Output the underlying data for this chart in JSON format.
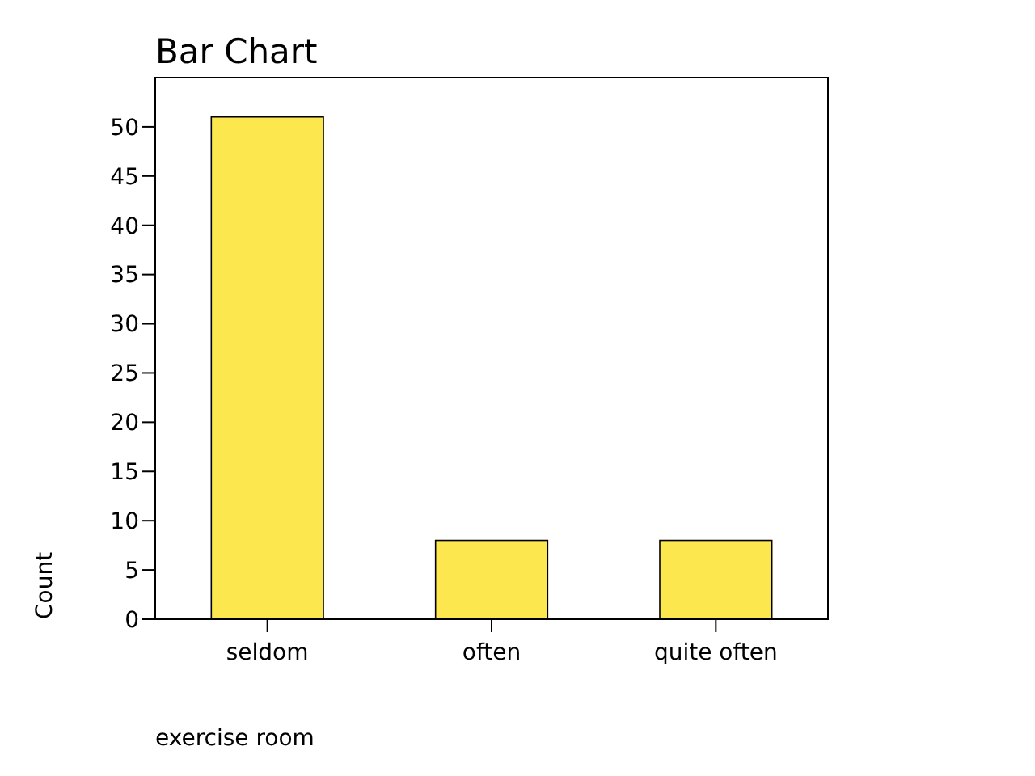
{
  "chart_data": {
    "type": "bar",
    "title": "Bar Chart",
    "xlabel": "exercise room",
    "ylabel": "Count",
    "categories": [
      "seldom",
      "often",
      "quite often"
    ],
    "values": [
      51,
      8,
      8
    ],
    "color": "#fde74f",
    "ylim": [
      0,
      55
    ],
    "yticks": [
      0,
      5,
      10,
      15,
      20,
      25,
      30,
      35,
      40,
      45,
      50
    ],
    "grid": false
  }
}
